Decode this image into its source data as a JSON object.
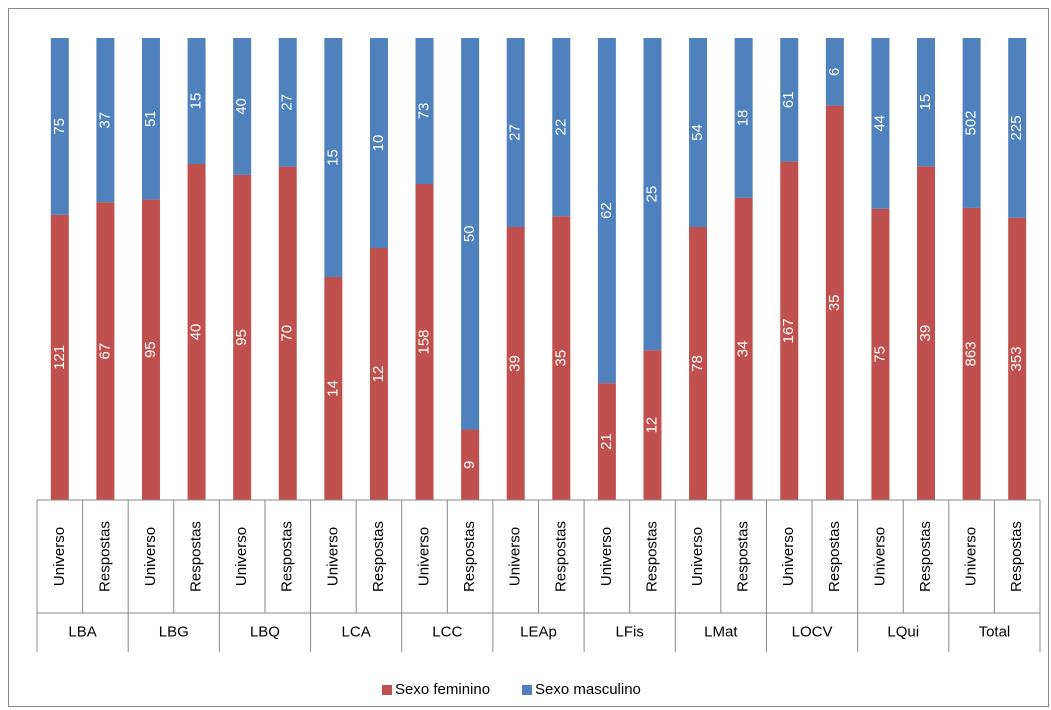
{
  "chart_data": {
    "type": "stacked_bar_100",
    "groups": [
      "LBA",
      "LBG",
      "LBQ",
      "LCA",
      "LCC",
      "LEAp",
      "LFis",
      "LMat",
      "LOCV",
      "LQui",
      "Total"
    ],
    "categories": [
      "Universo",
      "Respostas",
      "Universo",
      "Respostas",
      "Universo",
      "Respostas",
      "Universo",
      "Respostas",
      "Universo",
      "Respostas",
      "Universo",
      "Respostas",
      "Universo",
      "Respostas",
      "Universo",
      "Respostas",
      "Universo",
      "Respostas",
      "Universo",
      "Respostas",
      "Universo",
      "Respostas"
    ],
    "series": [
      {
        "name": "Sexo feminino",
        "color": "#c0504d",
        "values": [
          121,
          67,
          95,
          40,
          95,
          70,
          14,
          12,
          158,
          9,
          39,
          35,
          21,
          12,
          78,
          34,
          167,
          35,
          75,
          39,
          863,
          353
        ]
      },
      {
        "name": "Sexo masculino",
        "color": "#4f81bd",
        "values": [
          75,
          37,
          51,
          15,
          40,
          27,
          15,
          10,
          73,
          50,
          27,
          22,
          62,
          25,
          54,
          18,
          61,
          6,
          44,
          15,
          502,
          225
        ]
      }
    ],
    "legend": "bottom"
  }
}
